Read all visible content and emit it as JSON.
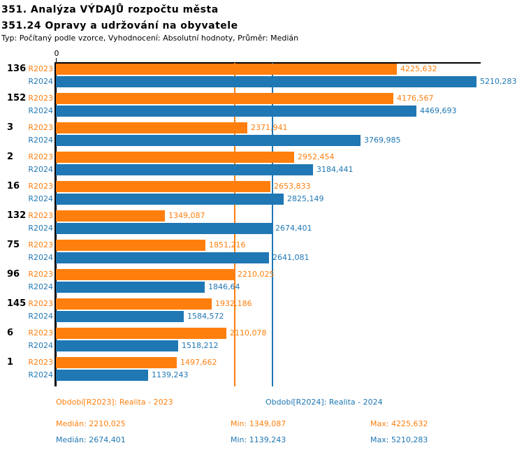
{
  "header": {
    "title1": "351. Analýza VÝDAJŮ rozpočtu města",
    "title2": "351.24 Opravy a udržování na obyvatele",
    "meta": "Typ: Počítaný podle vzorce, Vyhodnocení: Absolutní hodnoty, Průměr: Medián"
  },
  "colors": {
    "series_2023": "#ff7f0e",
    "series_2024": "#1f77b4",
    "axis": "#000000"
  },
  "chart_data": {
    "type": "bar",
    "orientation": "horizontal",
    "title": "351.24 Opravy a udržování na obyvatele",
    "xlabel": "",
    "ylabel": "",
    "xlim": [
      0,
      5210.283
    ],
    "axis_zero_label": "0",
    "grid": false,
    "legend_position": "bottom",
    "categories": [
      "136",
      "152",
      "3",
      "2",
      "16",
      "132",
      "75",
      "96",
      "145",
      "6",
      "1"
    ],
    "series": [
      {
        "name": "R2023",
        "color": "#ff7f0e",
        "values": [
          4225.632,
          4176.567,
          2371.941,
          2952.454,
          2653.833,
          1349.087,
          1851.216,
          2210.025,
          1932.186,
          2110.078,
          1497.662
        ],
        "value_labels": [
          "4225,632",
          "4176,567",
          "2371,941",
          "2952,454",
          "2653,833",
          "1349,087",
          "1851,216",
          "2210,025",
          "1932,186",
          "2110,078",
          "1497,662"
        ],
        "median": 2210.025
      },
      {
        "name": "R2024",
        "color": "#1f77b4",
        "values": [
          5210.283,
          4469.693,
          3769.985,
          3184.441,
          2825.149,
          2674.401,
          2641.081,
          1846.64,
          1584.572,
          1518.212,
          1139.243
        ],
        "value_labels": [
          "5210,283",
          "4469,693",
          "3769,985",
          "3184,441",
          "2825,149",
          "2674,401",
          "2641,081",
          "1846,64",
          "1584,572",
          "1518,212",
          "1139,243"
        ],
        "median": 2674.401
      }
    ]
  },
  "legend": {
    "item_2023": "Období[R2023]: Realita - 2023",
    "item_2024": "Období[R2024]: Realita - 2024"
  },
  "stats": {
    "row_2023": {
      "median": "Medián: 2210,025",
      "min": "Min: 1349,087",
      "max": "Max: 4225,632"
    },
    "row_2024": {
      "median": "Medián: 2674,401",
      "min": "Min: 1139,243",
      "max": "Max: 5210,283"
    }
  }
}
